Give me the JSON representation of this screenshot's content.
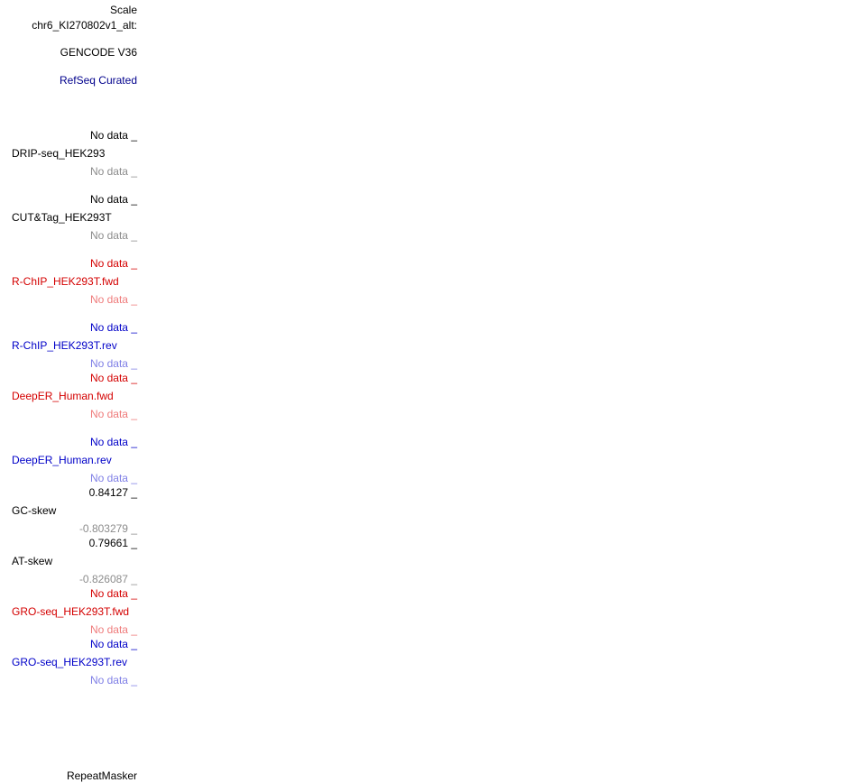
{
  "header": {
    "scale_label": "Scale",
    "chrom_label": "chr6_KI270802v1_alt:"
  },
  "tracks": {
    "gencode": "GENCODE V36",
    "refseq": "RefSeq Curated",
    "drip_seq": {
      "top": "No data _",
      "name": "DRIP-seq_HEK293",
      "bottom": "No data _"
    },
    "cut_tag": {
      "top": "No data _",
      "name": "CUT&Tag_HEK293T",
      "bottom": "No data _"
    },
    "rchip_fwd": {
      "top": "No data _",
      "name": "R-ChIP_HEK293T.fwd",
      "bottom": "No data _"
    },
    "rchip_rev": {
      "top": "No data _",
      "name": "R-ChIP_HEK293T.rev",
      "bottom": "No data _"
    },
    "deeper_fwd": {
      "top": "No data _",
      "name": "DeepER_Human.fwd",
      "bottom": "No data _"
    },
    "deeper_rev": {
      "top": "No data _",
      "name": "DeepER_Human.rev",
      "bottom": "No data _"
    },
    "gc_skew": {
      "top": "0.84127 _",
      "name": "GC-skew",
      "bottom": "-0.803279 _"
    },
    "at_skew": {
      "top": "0.79661 _",
      "name": "AT-skew",
      "bottom": "-0.826087 _"
    },
    "gro_fwd": {
      "top": "No data _",
      "name": "GRO-seq_HEK293T.fwd",
      "bottom": "No data _"
    },
    "gro_rev": {
      "top": "No data _",
      "name": "GRO-seq_HEK293T.rev",
      "bottom": "No data _"
    },
    "repeatmasker": "RepeatMasker"
  },
  "colors": {
    "navy": "#00008c",
    "red": "#d40000",
    "pink": "#ef7b7b",
    "blue": "#0000c8",
    "lightblue": "#7f7fe6",
    "gray": "#8c8c8c"
  }
}
